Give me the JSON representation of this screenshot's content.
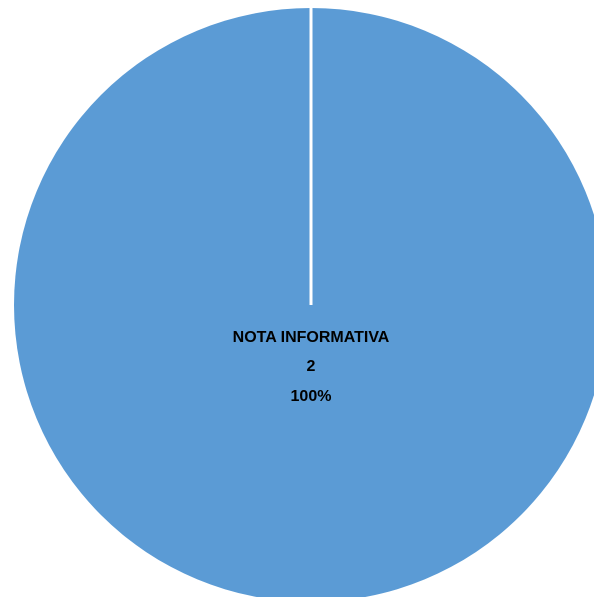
{
  "chart_data": {
    "type": "pie",
    "categories": [
      "NOTA INFORMATIVA"
    ],
    "values": [
      2
    ],
    "percent_labels": [
      "100%"
    ],
    "colors": {
      "slice": "#5b9bd5",
      "separator": "#ffffff",
      "label_text": "#000000"
    },
    "legend": "none"
  }
}
